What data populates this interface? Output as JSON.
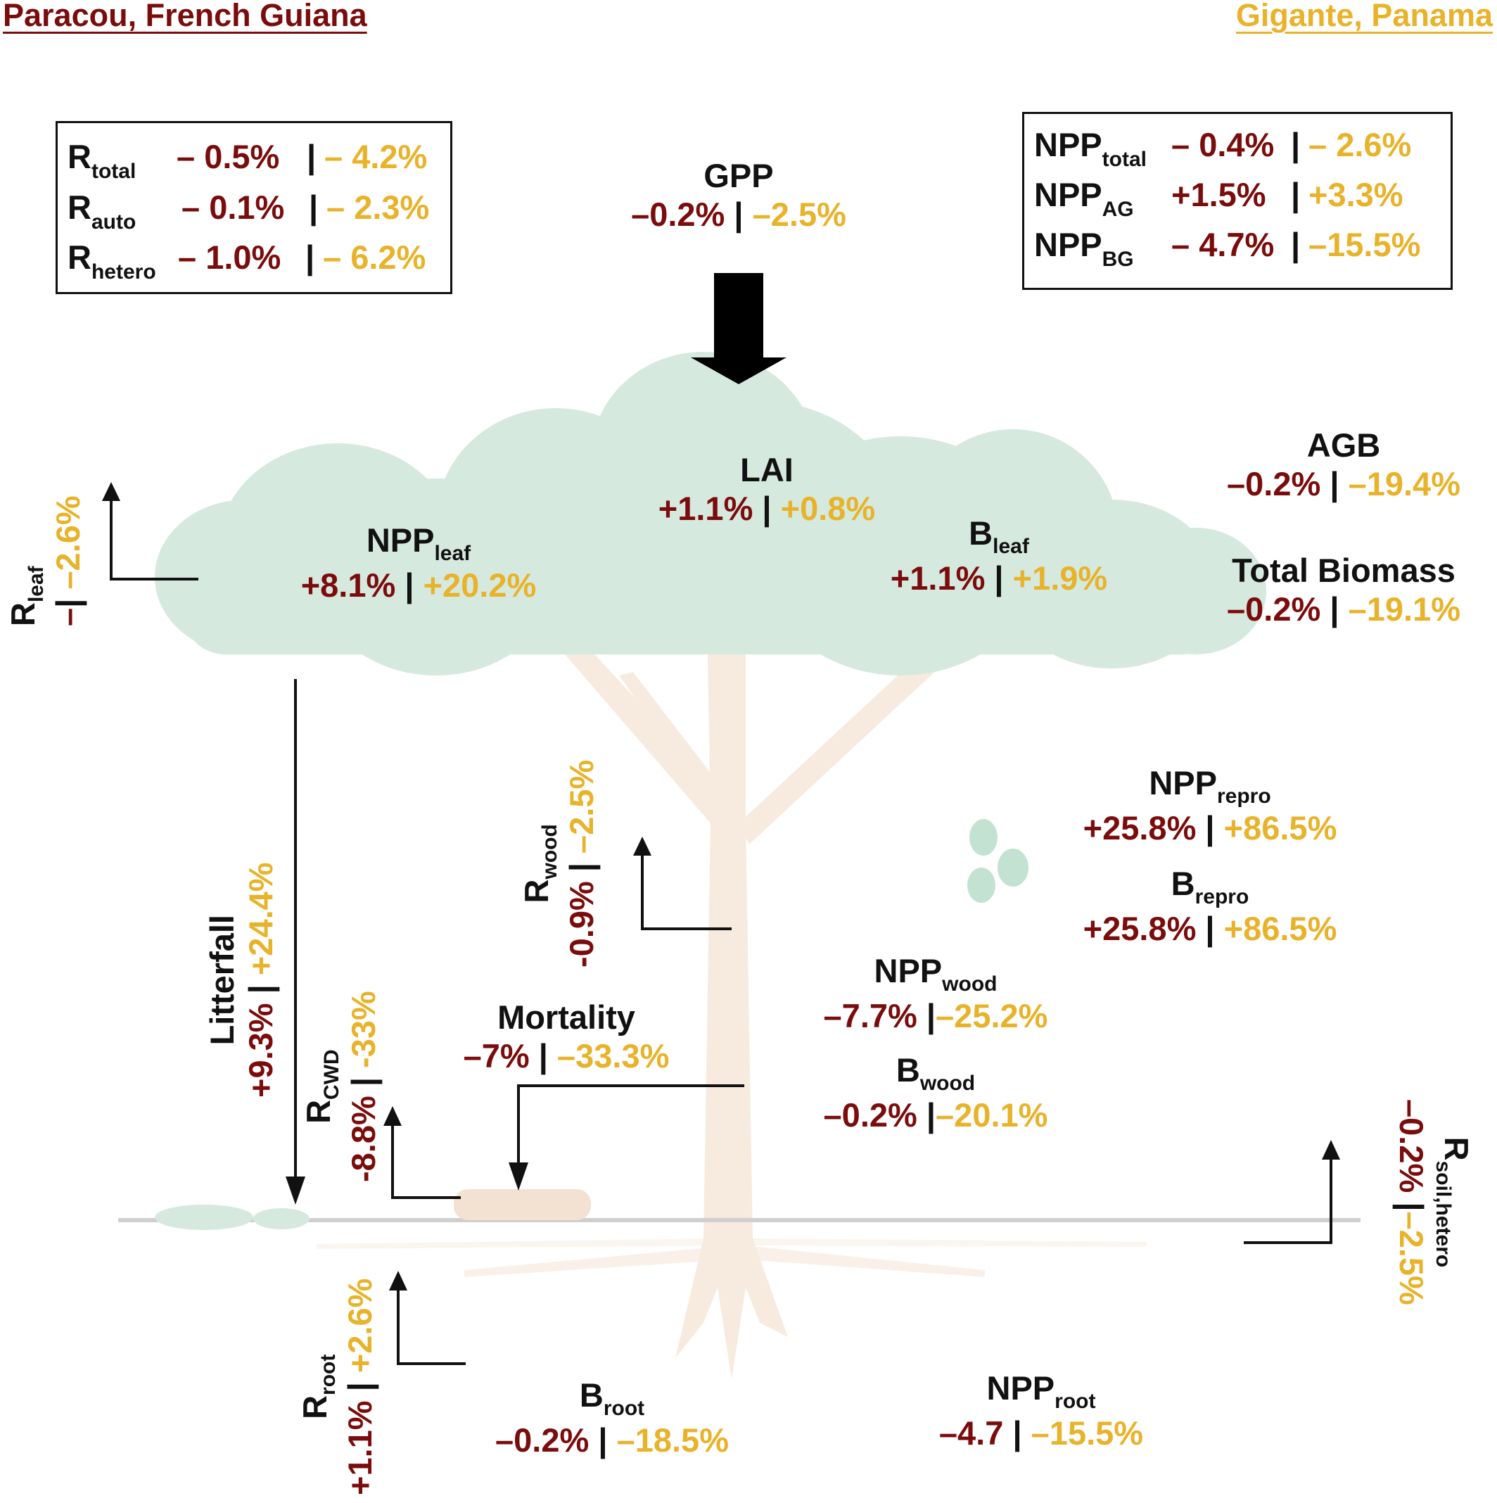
{
  "sites": {
    "paracou": "Paracou, French Guiana",
    "gigante": "Gigante, Panama"
  },
  "colors": {
    "paracou": "#7a0c0c",
    "gigante": "#e8b32a",
    "canopy": "#d6e9df",
    "trunk": "#f7ebe0"
  },
  "respiration_box": {
    "rows": [
      {
        "base": "R",
        "sub": "total",
        "paracou": "– 0.5%",
        "gigante": "– 4.2%"
      },
      {
        "base": "R",
        "sub": "auto",
        "paracou": "– 0.1%",
        "gigante": "– 2.3%"
      },
      {
        "base": "R",
        "sub": "hetero",
        "paracou": "– 1.0%",
        "gigante": "– 6.2%"
      }
    ]
  },
  "npp_box": {
    "rows": [
      {
        "base": "NPP",
        "sub": "total",
        "paracou": "– 0.4%",
        "gigante": "– 2.6%"
      },
      {
        "base": "NPP",
        "sub": "AG",
        "paracou": "+1.5%",
        "gigante": "+3.3%"
      },
      {
        "base": "NPP",
        "sub": "BG",
        "paracou": "– 4.7%",
        "gigante": "–15.5%"
      }
    ]
  },
  "sep": "|",
  "gpp": {
    "label": "GPP",
    "paracou": "–0.2%",
    "gigante": "–2.5%"
  },
  "lai": {
    "label": "LAI",
    "paracou": "+1.1%",
    "gigante": "+0.8%"
  },
  "npp_leaf": {
    "base": "NPP",
    "sub": "leaf",
    "paracou": "+8.1%",
    "gigante": "+20.2%"
  },
  "b_leaf": {
    "base": "B",
    "sub": "leaf",
    "paracou": "+1.1%",
    "gigante": "+1.9%"
  },
  "agb": {
    "label": "AGB",
    "paracou": "–0.2%",
    "gigante": "–19.4%"
  },
  "total_biomass": {
    "label": "Total Biomass",
    "paracou": "–0.2%",
    "gigante": "–19.1%"
  },
  "r_leaf": {
    "base": "R",
    "sub": "leaf",
    "paracou": "–",
    "gigante": "–2.6%"
  },
  "npp_repro": {
    "base": "NPP",
    "sub": "repro",
    "paracou": "+25.8%",
    "gigante": "+86.5%"
  },
  "b_repro": {
    "base": "B",
    "sub": "repro",
    "paracou": "+25.8%",
    "gigante": "+86.5%"
  },
  "r_wood": {
    "base": "R",
    "sub": "wood",
    "paracou": "-0.9%",
    "gigante": "–2.5%"
  },
  "npp_wood": {
    "base": "NPP",
    "sub": "wood",
    "paracou": "–7.7%",
    "gigante": "–25.2%"
  },
  "b_wood": {
    "base": "B",
    "sub": "wood",
    "paracou": "–0.2%",
    "gigante": "–20.1%"
  },
  "litterfall": {
    "label": "Litterfall",
    "paracou": "+9.3%",
    "gigante": "+24.4%"
  },
  "r_cwd": {
    "base": "R",
    "sub": "CWD",
    "paracou": "-8.8%",
    "gigante": "-33%"
  },
  "mortality": {
    "label": "Mortality",
    "paracou": "–7%",
    "gigante": "–33.3%"
  },
  "r_soil": {
    "base": "R",
    "sub": "soil,hetero",
    "paracou": "–0.2%",
    "gigante": "–2.5%"
  },
  "r_root": {
    "base": "R",
    "sub": "root",
    "paracou": "+1.1%",
    "gigante": "+2.6%"
  },
  "b_root": {
    "base": "B",
    "sub": "root",
    "paracou": "–0.2%",
    "gigante": "–18.5%"
  },
  "npp_root": {
    "base": "NPP",
    "sub": "root",
    "paracou": "–4.7",
    "gigante": "–15.5%"
  }
}
